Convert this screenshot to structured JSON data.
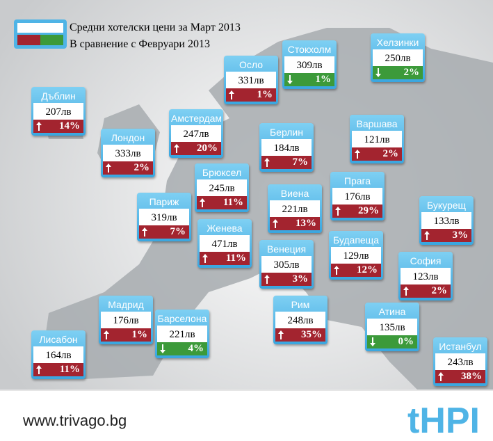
{
  "legend": {
    "line1": "Средни хотелски цени за Март 2013",
    "line2": "В сравнение с Февруари 2013"
  },
  "cities": [
    {
      "name": "Осло",
      "price": "331лв",
      "change": "1%",
      "direction": "up"
    },
    {
      "name": "Стокхолм",
      "price": "309лв",
      "change": "1%",
      "direction": "down"
    },
    {
      "name": "Хелзинки",
      "price": "250лв",
      "change": "2%",
      "direction": "down"
    },
    {
      "name": "Дъблин",
      "price": "207лв",
      "change": "14%",
      "direction": "up"
    },
    {
      "name": "Амстердам",
      "price": "247лв",
      "change": "20%",
      "direction": "up"
    },
    {
      "name": "Лондон",
      "price": "333лв",
      "change": "2%",
      "direction": "up"
    },
    {
      "name": "Берлин",
      "price": "184лв",
      "change": "7%",
      "direction": "up"
    },
    {
      "name": "Варшава",
      "price": "121лв",
      "change": "2%",
      "direction": "up"
    },
    {
      "name": "Брюксел",
      "price": "245лв",
      "change": "11%",
      "direction": "up"
    },
    {
      "name": "Прага",
      "price": "176лв",
      "change": "29%",
      "direction": "up"
    },
    {
      "name": "Виена",
      "price": "221лв",
      "change": "13%",
      "direction": "up"
    },
    {
      "name": "Париж",
      "price": "319лв",
      "change": "7%",
      "direction": "up"
    },
    {
      "name": "Букурещ",
      "price": "133лв",
      "change": "3%",
      "direction": "up"
    },
    {
      "name": "Женева",
      "price": "471лв",
      "change": "11%",
      "direction": "up"
    },
    {
      "name": "Будапеща",
      "price": "129лв",
      "change": "12%",
      "direction": "up"
    },
    {
      "name": "Венеция",
      "price": "305лв",
      "change": "3%",
      "direction": "up"
    },
    {
      "name": "София",
      "price": "123лв",
      "change": "2%",
      "direction": "up"
    },
    {
      "name": "Мадрид",
      "price": "176лв",
      "change": "1%",
      "direction": "up"
    },
    {
      "name": "Рим",
      "price": "248лв",
      "change": "35%",
      "direction": "up"
    },
    {
      "name": "Атина",
      "price": "135лв",
      "change": "0%",
      "direction": "down"
    },
    {
      "name": "Барселона",
      "price": "221лв",
      "change": "4%",
      "direction": "down"
    },
    {
      "name": "Лисабон",
      "price": "164лв",
      "change": "11%",
      "direction": "up"
    },
    {
      "name": "Истанбул",
      "price": "243лв",
      "change": "38%",
      "direction": "up"
    }
  ],
  "footer": {
    "url": "www.trivago.bg",
    "logo": "tHPI"
  }
}
